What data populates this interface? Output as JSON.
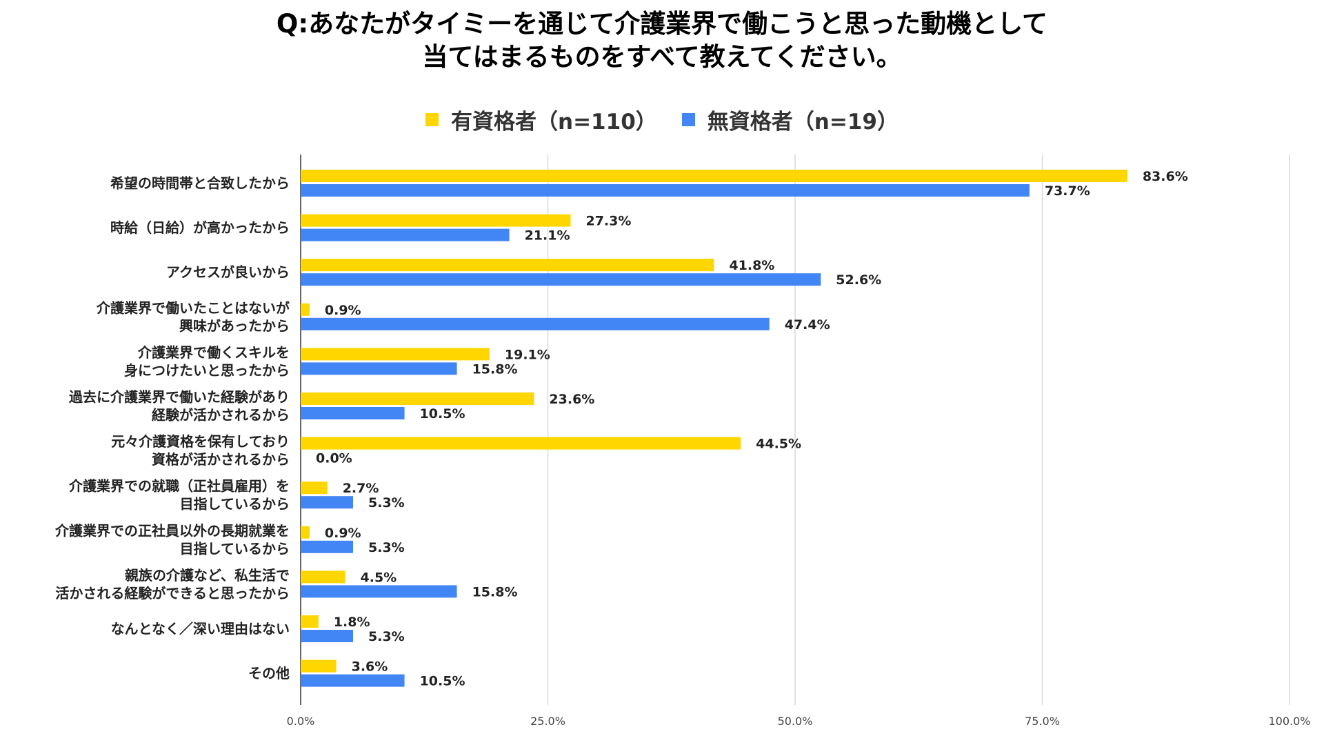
{
  "chart_data": {
    "type": "bar",
    "orientation": "horizontal",
    "title": "Q:あなたがタイミーを通じて介護業界で働こうと思った動機として",
    "subtitle": "当てはまるものをすべて教えてください。",
    "legend_position": "top",
    "grid": true,
    "xlim": [
      0,
      100
    ],
    "ticks": [
      "0.0%",
      "25.0%",
      "50.0%",
      "75.0%",
      "100.0%"
    ],
    "tick_values": [
      0,
      25,
      50,
      75,
      100
    ],
    "categories": [
      [
        "希望の時間帯と合致したから"
      ],
      [
        "時給（日給）が高かったから"
      ],
      [
        "アクセスが良いから"
      ],
      [
        "介護業界で働いたことはないが",
        "興味があったから"
      ],
      [
        "介護業界で働くスキルを",
        "身につけたいと思ったから"
      ],
      [
        "過去に介護業界で働いた経験があり",
        "経験が活かされるから"
      ],
      [
        "元々介護資格を保有しており",
        "資格が活かされるから"
      ],
      [
        "介護業界での就職（正社員雇用）を",
        "目指しているから"
      ],
      [
        "介護業界での正社員以外の長期就業を",
        "目指しているから"
      ],
      [
        "親族の介護など、私生活で",
        "活かされる経験ができると思ったから"
      ],
      [
        "なんとなく／深い理由はない"
      ],
      [
        "その他"
      ]
    ],
    "series": [
      {
        "name": "有資格者（n=110）",
        "color": "#FFD600",
        "values": [
          83.6,
          27.3,
          41.8,
          0.9,
          19.1,
          23.6,
          44.5,
          2.7,
          0.9,
          4.5,
          1.8,
          3.6
        ],
        "labels": [
          "83.6%",
          "27.3%",
          "41.8%",
          "0.9%",
          "19.1%",
          "23.6%",
          "44.5%",
          "2.7%",
          "0.9%",
          "4.5%",
          "1.8%",
          "3.6%"
        ]
      },
      {
        "name": "無資格者（n=19）",
        "color": "#4285F4",
        "values": [
          73.7,
          21.1,
          52.6,
          47.4,
          15.8,
          10.5,
          0.0,
          5.3,
          5.3,
          15.8,
          5.3,
          10.5
        ],
        "labels": [
          "73.7%",
          "21.1%",
          "52.6%",
          "47.4%",
          "15.8%",
          "10.5%",
          "0.0%",
          "5.3%",
          "5.3%",
          "15.8%",
          "5.3%",
          "10.5%"
        ]
      }
    ]
  }
}
